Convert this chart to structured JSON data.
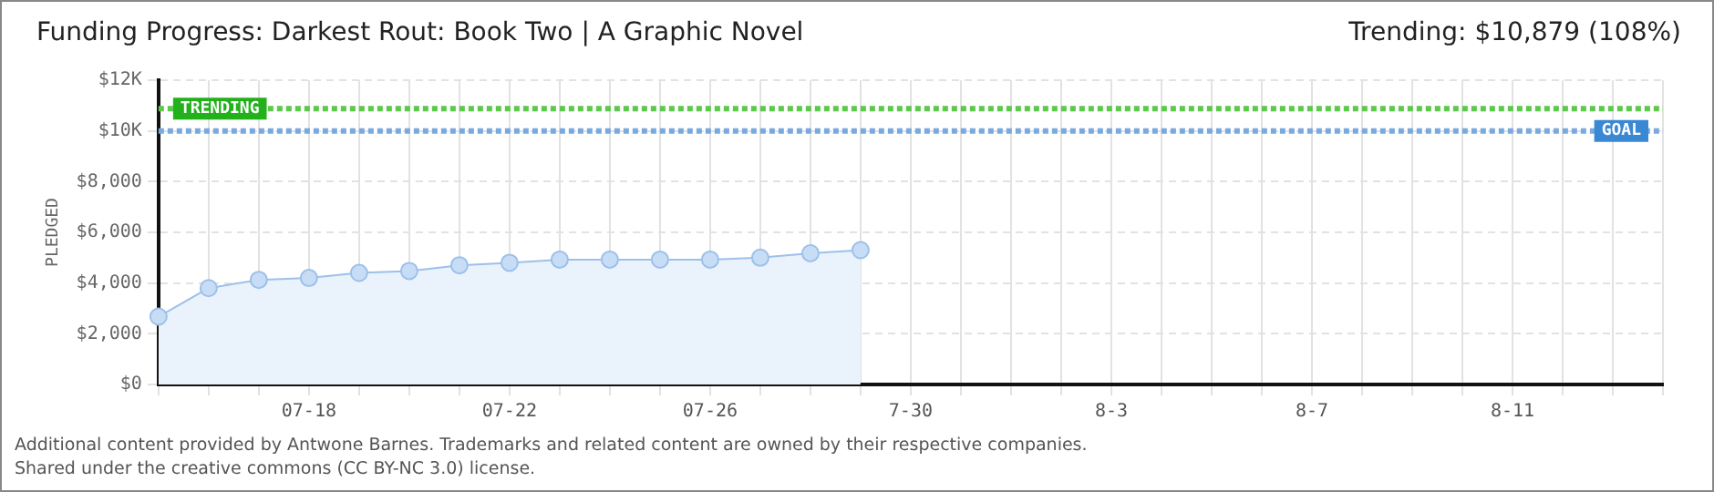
{
  "chart_data": {
    "type": "area",
    "title": "Funding Progress: Darkest Rout: Book Two | A Graphic Novel",
    "annotations": [
      "Trending: $10,879 (108%)",
      "Additional content provided by Antwone Barnes. Trademarks and related content are owned by their respective companies.",
      "Shared under the creative commons (CC BY-NC 3.0) license."
    ],
    "ylabel": "PLEDGED",
    "categories": [
      null,
      null,
      null,
      "07-18",
      null,
      null,
      null,
      "07-22",
      null,
      null,
      null,
      "07-26",
      null,
      null,
      null,
      "7-30",
      null,
      null,
      null,
      "8-3",
      null,
      null,
      null,
      "8-7",
      null,
      null,
      null,
      "8-11",
      null,
      null,
      null
    ],
    "series": [
      {
        "color": "#9dc0ea",
        "values": [
          2675,
          3800,
          4125,
          4200,
          4400,
          4475,
          4700,
          4800,
          4925,
          4925,
          4925,
          4925,
          5000,
          5175,
          5300,
          null,
          null,
          null,
          null,
          null,
          null,
          null,
          null,
          null,
          null,
          null,
          null,
          null,
          null,
          null,
          null
        ]
      }
    ],
    "ylim": [
      0,
      12000
    ],
    "yticks": [
      {
        "value": 0,
        "label": "$0"
      },
      {
        "value": 2000,
        "label": "$2,000"
      },
      {
        "value": 4000,
        "label": "$4,000"
      },
      {
        "value": 6000,
        "label": "$6,000"
      },
      {
        "value": 8000,
        "label": "$8,000"
      },
      {
        "value": 10000,
        "label": "$10K"
      },
      {
        "value": 12000,
        "label": "$12K"
      }
    ],
    "ref_lines": [
      {
        "axis": "y",
        "value": 10879,
        "label": "TRENDING",
        "color": "#5cc94a",
        "line_style": "dotted"
      },
      {
        "axis": "y",
        "value": 10000,
        "label": "GOAL",
        "color": "#7aa9e0",
        "line_style": "dotted"
      }
    ],
    "grid": true,
    "marker": "circle",
    "legend": false
  }
}
